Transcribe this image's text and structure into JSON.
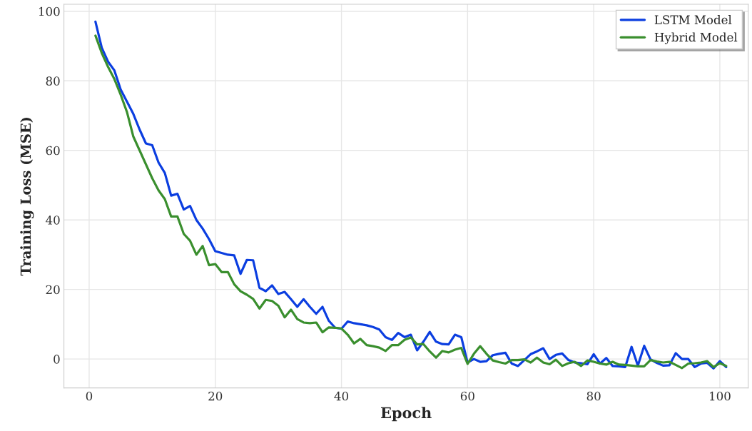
{
  "chart_data": {
    "type": "line",
    "xlabel": "Epoch",
    "ylabel": "Training Loss (MSE)",
    "x": [
      1,
      2,
      3,
      4,
      5,
      6,
      7,
      8,
      9,
      10,
      11,
      12,
      13,
      14,
      15,
      16,
      17,
      18,
      19,
      20,
      21,
      22,
      23,
      24,
      25,
      26,
      27,
      28,
      29,
      30,
      31,
      32,
      33,
      34,
      35,
      36,
      37,
      38,
      39,
      40,
      41,
      42,
      43,
      44,
      45,
      46,
      47,
      48,
      49,
      50,
      51,
      52,
      53,
      54,
      55,
      56,
      57,
      58,
      59,
      60,
      61,
      62,
      63,
      64,
      65,
      66,
      67,
      68,
      69,
      70,
      71,
      72,
      73,
      74,
      75,
      76,
      77,
      78,
      79,
      80,
      81,
      82,
      83,
      84,
      85,
      86,
      87,
      88,
      89,
      90,
      91,
      92,
      93,
      94,
      95,
      96,
      97,
      98,
      99,
      100,
      101
    ],
    "series": [
      {
        "name": "LSTM Model",
        "color": "#0b3ee0",
        "values": [
          97,
          89.5,
          85.5,
          83,
          77.5,
          74,
          70.5,
          66,
          62,
          61.5,
          56.5,
          53.5,
          47,
          47.5,
          43,
          44,
          40,
          37.5,
          34.5,
          31,
          30.5,
          30,
          29.8,
          24.5,
          28.5,
          28.4,
          20.5,
          19.5,
          21.2,
          18.7,
          19.3,
          17.2,
          15,
          17.2,
          15,
          13,
          15,
          11,
          9,
          8.7,
          10.8,
          10.3,
          10,
          9.7,
          9.2,
          8.5,
          6.3,
          5.5,
          7.5,
          6.3,
          7,
          2.5,
          5,
          7.8,
          5,
          4.3,
          4.2,
          7,
          6.3,
          -1,
          0,
          -0.8,
          -0.6,
          1.1,
          1.5,
          1.8,
          -1.3,
          -2,
          -0.3,
          1.4,
          2.2,
          3.1,
          0,
          1.2,
          1.6,
          -0.3,
          -1,
          -1.2,
          -1.5,
          1.4,
          -1.3,
          0.3,
          -2,
          -2.1,
          -2.3,
          3.5,
          -1.9,
          3.8,
          -0.1,
          -1.1,
          -1.9,
          -1.8,
          1.7,
          0,
          0,
          -2.3,
          -1.3,
          -1.1,
          -2.7,
          -0.6,
          -2.3
        ]
      },
      {
        "name": "Hybrid Model",
        "color": "#3a8f2e",
        "values": [
          93,
          88,
          84,
          80.5,
          76,
          71,
          64,
          60,
          56,
          52,
          48.5,
          46,
          41,
          41,
          36,
          34,
          30,
          32.5,
          27,
          27.3,
          25,
          25,
          21.5,
          19.5,
          18.5,
          17.3,
          14.5,
          17,
          16.7,
          15.3,
          12,
          14.2,
          11.5,
          10.5,
          10.3,
          10.5,
          7.7,
          9.1,
          9,
          8.8,
          7,
          4.5,
          5.8,
          4,
          3.7,
          3.3,
          2.3,
          4,
          4,
          5.5,
          6.2,
          4.2,
          4.3,
          2.2,
          0.4,
          2.3,
          1.9,
          2.7,
          3.2,
          -1.4,
          1.5,
          3.7,
          1.5,
          -0.4,
          -0.9,
          -1.3,
          -0.3,
          -0.3,
          -0.1,
          -1,
          0.4,
          -1,
          -1.5,
          -0.2,
          -2,
          -1.2,
          -0.8,
          -2,
          -0.4,
          -0.8,
          -1.3,
          -1.6,
          -0.8,
          -1.6,
          -1.7,
          -1.9,
          -2.1,
          -2.1,
          -0.3,
          -0.7,
          -1,
          -0.8,
          -1.7,
          -2.6,
          -1.3,
          -1.2,
          -1,
          -0.6,
          -2.3,
          -1.2,
          -2
        ]
      }
    ],
    "xlim": [
      -4,
      104.5
    ],
    "ylim": [
      -8.3,
      102
    ],
    "xticks": [
      0,
      20,
      40,
      60,
      80,
      100
    ],
    "yticks": [
      0,
      20,
      40,
      60,
      80,
      100
    ],
    "grid": true,
    "legend": "top right",
    "line_style": "solid",
    "marker": "none"
  }
}
